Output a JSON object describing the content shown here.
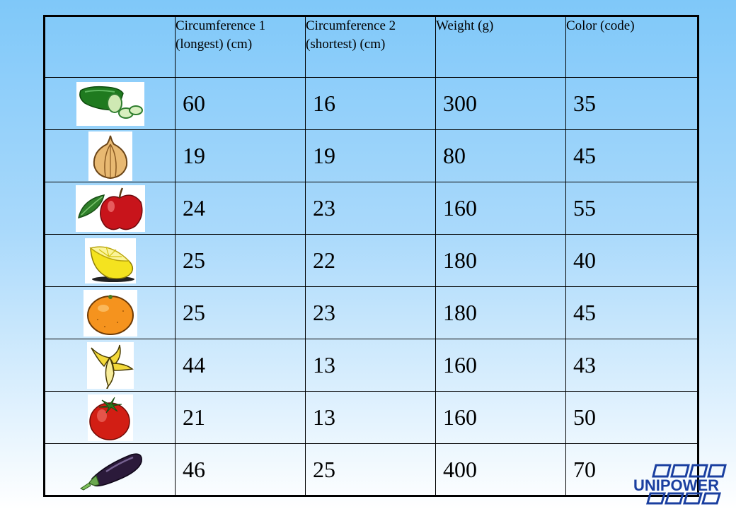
{
  "table": {
    "headers": [
      "",
      "Circumference 1 (longest) (cm)",
      "Circumference 2 (shortest) (cm)",
      "Weight (g)",
      "Color (code)"
    ],
    "rows": [
      {
        "item_icon": "cucumber-icon",
        "circumference_1": "60",
        "circumference_2": "16",
        "weight": "300",
        "color_code": "35"
      },
      {
        "item_icon": "onion-icon",
        "circumference_1": "19",
        "circumference_2": "19",
        "weight": "80",
        "color_code": "45"
      },
      {
        "item_icon": "apple-icon",
        "circumference_1": "24",
        "circumference_2": "23",
        "weight": "160",
        "color_code": "55"
      },
      {
        "item_icon": "lemon-icon",
        "circumference_1": "25",
        "circumference_2": "22",
        "weight": "180",
        "color_code": "40"
      },
      {
        "item_icon": "orange-icon",
        "circumference_1": "25",
        "circumference_2": "23",
        "weight": "180",
        "color_code": "45"
      },
      {
        "item_icon": "banana-icon",
        "circumference_1": "44",
        "circumference_2": "13",
        "weight": "160",
        "color_code": "43"
      },
      {
        "item_icon": "tomato-icon",
        "circumference_1": "21",
        "circumference_2": "13",
        "weight": "160",
        "color_code": "50"
      },
      {
        "item_icon": "eggplant-icon",
        "circumference_1": "46",
        "circumference_2": "25",
        "weight": "400",
        "color_code": "70"
      }
    ]
  },
  "logo": {
    "text": "UNIPOWER",
    "color": "#1a3fa0"
  },
  "colors": {
    "background_top": "#7fc8f9",
    "background_bottom": "#ffffff",
    "table_border": "#000000"
  }
}
